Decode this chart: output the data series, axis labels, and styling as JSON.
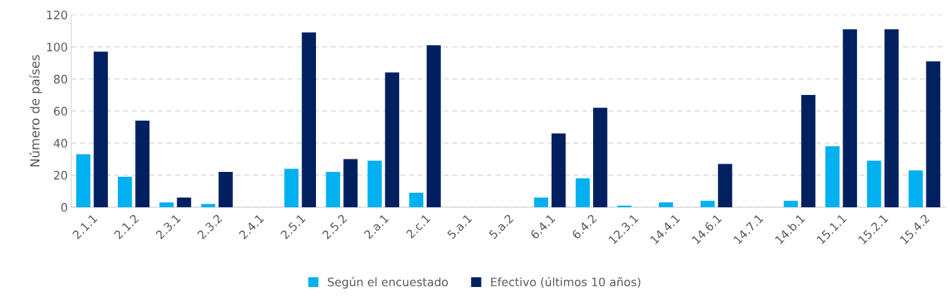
{
  "chart_data": {
    "type": "bar",
    "ylabel": "Número de países",
    "categories": [
      "2.1.1",
      "2.1.2",
      "2.3.1",
      "2.3.2",
      "2.4.1",
      "2.5.1",
      "2.5.2",
      "2.a.1",
      "2.c.1",
      "5.a.1",
      "5.a.2",
      "6.4.1",
      "6.4.2",
      "12.3.1",
      "14.4.1",
      "14.6.1",
      "14.7.1",
      "14.b.1",
      "15.1.1",
      "15.2.1",
      "15.4.2"
    ],
    "series": [
      {
        "name": "Según el encuestado",
        "color": "#00b0f0",
        "values": [
          33,
          19,
          3,
          2,
          0,
          24,
          22,
          29,
          9,
          0,
          0,
          6,
          18,
          1,
          3,
          4,
          0,
          4,
          38,
          29,
          23
        ]
      },
      {
        "name": "Efectivo (últimos 10 años)",
        "color": "#002060",
        "values": [
          97,
          54,
          6,
          22,
          0,
          109,
          30,
          84,
          101,
          0,
          0,
          46,
          62,
          0,
          0,
          27,
          0,
          70,
          111,
          111,
          91
        ]
      }
    ],
    "ylim": [
      0,
      120
    ],
    "yticks": [
      0,
      20,
      40,
      60,
      80,
      100,
      120
    ],
    "grid": "y",
    "legend": "bottom"
  }
}
